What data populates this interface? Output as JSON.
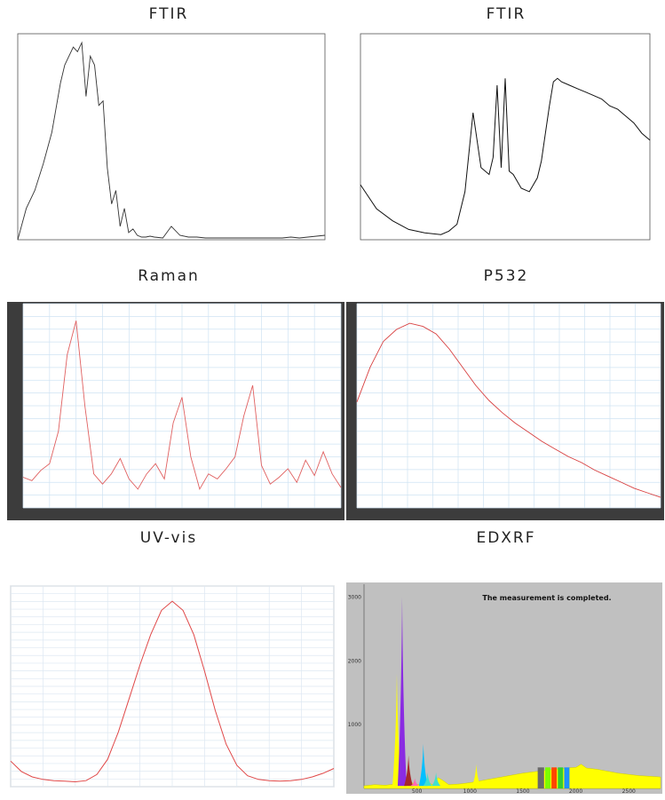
{
  "titles": [
    "FTIR",
    "FTIR",
    "Raman",
    "P532",
    "UV-vis",
    "EDXRF"
  ],
  "edxrf_message": "The measurement is completed.",
  "chart_data": [
    {
      "type": "line",
      "title": "FTIR",
      "x": [
        4000,
        3900,
        3800,
        3700,
        3600,
        3500,
        3450,
        3400,
        3350,
        3300,
        3250,
        3200,
        3150,
        3100,
        3050,
        3000,
        2950,
        2900,
        2850,
        2800,
        2750,
        2700,
        2650,
        2600,
        2550,
        2500,
        2450,
        2400,
        2300,
        2200,
        2100,
        2000,
        1900,
        1800,
        1700,
        1600,
        1500,
        1400,
        1300,
        1200,
        1100,
        1000,
        900,
        800,
        700,
        600,
        500,
        400
      ],
      "y": [
        0,
        0.35,
        0.55,
        0.85,
        1.2,
        1.75,
        1.95,
        2.05,
        2.15,
        2.1,
        2.2,
        1.6,
        2.05,
        1.95,
        1.5,
        1.55,
        0.8,
        0.4,
        0.55,
        0.15,
        0.35,
        0.08,
        0.12,
        0.05,
        0.03,
        0.03,
        0.04,
        0.03,
        0.02,
        0.15,
        0.05,
        0.03,
        0.03,
        0.02,
        0.02,
        0.02,
        0.02,
        0.02,
        0.02,
        0.02,
        0.02,
        0.02,
        0.02,
        0.03,
        0.02,
        0.03,
        0.04,
        0.05
      ],
      "xlim": [
        4000,
        400
      ],
      "ylim": [
        0,
        2.3
      ],
      "xlabel": "",
      "ylabel": ""
    },
    {
      "type": "line",
      "title": "FTIR",
      "x": [
        4000,
        3800,
        3600,
        3400,
        3200,
        3000,
        2900,
        2800,
        2700,
        2600,
        2500,
        2400,
        2350,
        2300,
        2250,
        2200,
        2150,
        2100,
        2000,
        1900,
        1800,
        1750,
        1700,
        1650,
        1600,
        1550,
        1500,
        1400,
        1300,
        1200,
        1100,
        1000,
        900,
        800,
        700,
        600,
        500,
        400
      ],
      "y": [
        1.6,
        0.9,
        0.55,
        0.3,
        0.2,
        0.15,
        0.25,
        0.45,
        1.4,
        3.7,
        2.1,
        1.9,
        2.4,
        4.5,
        2.1,
        4.7,
        2.0,
        1.9,
        1.5,
        1.4,
        1.8,
        2.3,
        3.1,
        3.9,
        4.6,
        4.7,
        4.6,
        4.5,
        4.4,
        4.3,
        4.2,
        4.1,
        3.9,
        3.8,
        3.6,
        3.4,
        3.1,
        2.9
      ],
      "xlim": [
        4000,
        400
      ],
      "ylim": [
        0,
        6
      ],
      "xlabel": "",
      "ylabel": ""
    },
    {
      "type": "line",
      "title": "Raman",
      "x": [
        0,
        5,
        10,
        15,
        20,
        25,
        30,
        35,
        40,
        45,
        50,
        55,
        60,
        65,
        70,
        75,
        80,
        85,
        90,
        95,
        100,
        105,
        110,
        115,
        120,
        125,
        130,
        135,
        140,
        145,
        150,
        155,
        160,
        165,
        170,
        175,
        180
      ],
      "y": [
        180,
        160,
        220,
        260,
        450,
        900,
        1100,
        600,
        200,
        140,
        200,
        290,
        170,
        110,
        200,
        260,
        170,
        500,
        650,
        300,
        110,
        200,
        170,
        230,
        300,
        540,
        720,
        250,
        140,
        180,
        230,
        150,
        280,
        190,
        330,
        200,
        120
      ],
      "xlim": [
        0,
        180
      ],
      "ylim": [
        0,
        1200
      ],
      "xlabel": "",
      "ylabel": ""
    },
    {
      "type": "line",
      "title": "P532",
      "x": [
        0,
        200,
        400,
        600,
        800,
        1000,
        1200,
        1400,
        1600,
        1800,
        2000,
        2200,
        2400,
        2600,
        2800,
        3000,
        3200,
        3400,
        3600,
        3800,
        4000,
        4200,
        4400,
        4600
      ],
      "y": [
        700,
        930,
        1100,
        1180,
        1220,
        1200,
        1150,
        1050,
        930,
        810,
        710,
        630,
        560,
        500,
        440,
        390,
        340,
        300,
        250,
        210,
        170,
        130,
        100,
        70
      ],
      "xlim": [
        0,
        4600
      ],
      "ylim": [
        0,
        1350
      ],
      "xlabel": "",
      "ylabel": ""
    },
    {
      "type": "line",
      "title": "UV-vis",
      "x": [
        350,
        360,
        370,
        380,
        390,
        400,
        410,
        420,
        430,
        440,
        450,
        460,
        470,
        480,
        490,
        500,
        510,
        520,
        530,
        540,
        550,
        560,
        570,
        580,
        590,
        600,
        610,
        620,
        630,
        640,
        650
      ],
      "y": [
        0.42,
        0.25,
        0.16,
        0.12,
        0.1,
        0.09,
        0.08,
        0.1,
        0.2,
        0.45,
        0.9,
        1.45,
        2.0,
        2.5,
        2.9,
        3.05,
        2.9,
        2.5,
        1.9,
        1.25,
        0.7,
        0.35,
        0.18,
        0.12,
        0.1,
        0.09,
        0.1,
        0.12,
        0.16,
        0.22,
        0.3
      ],
      "xlim": [
        350,
        650
      ],
      "ylim": [
        0,
        3.3
      ],
      "xlabel": "",
      "ylabel": ""
    },
    {
      "type": "area",
      "title": "EDXRF",
      "x": [
        0,
        100,
        200,
        250,
        300,
        350,
        400,
        450,
        500,
        550,
        600,
        650,
        700,
        750,
        800,
        900,
        1000,
        1100,
        1200,
        1300,
        1400,
        1500,
        1600,
        1700,
        1800,
        1900,
        2000,
        2050,
        2100,
        2200,
        2300,
        2400,
        2500,
        2600,
        2700,
        2800
      ],
      "y": [
        40,
        60,
        50,
        60,
        70,
        300,
        60,
        90,
        60,
        70,
        90,
        60,
        170,
        120,
        60,
        70,
        90,
        120,
        150,
        180,
        210,
        240,
        260,
        280,
        300,
        320,
        330,
        380,
        320,
        300,
        270,
        240,
        220,
        200,
        190,
        180
      ],
      "peaks": [
        {
          "x": 310,
          "y": 1800,
          "color": "#ffff00"
        },
        {
          "x": 360,
          "y": 3000,
          "color": "#8a2be2"
        },
        {
          "x": 420,
          "y": 520,
          "color": "#a52a2a"
        },
        {
          "x": 480,
          "y": 160,
          "color": "#ff69b4"
        },
        {
          "x": 560,
          "y": 700,
          "color": "#00bfff"
        },
        {
          "x": 600,
          "y": 250,
          "color": "#40e0d0"
        },
        {
          "x": 680,
          "y": 250,
          "color": "#40e0d0"
        },
        {
          "x": 1060,
          "y": 380,
          "color": "#ffff00"
        }
      ],
      "bands": [
        {
          "x0": 1640,
          "x1": 1700,
          "color": "#696969"
        },
        {
          "x0": 1710,
          "x1": 1760,
          "color": "#7cfc00"
        },
        {
          "x0": 1770,
          "x1": 1820,
          "color": "#ff4500"
        },
        {
          "x0": 1830,
          "x1": 1880,
          "color": "#32cd32"
        },
        {
          "x0": 1890,
          "x1": 1940,
          "color": "#1e90ff"
        }
      ],
      "xlim": [
        0,
        2800
      ],
      "ylim": [
        0,
        3200
      ],
      "yticks": [
        1000,
        2000,
        3000
      ],
      "xticks": [
        500,
        1000,
        1500,
        2000,
        2500
      ]
    }
  ]
}
